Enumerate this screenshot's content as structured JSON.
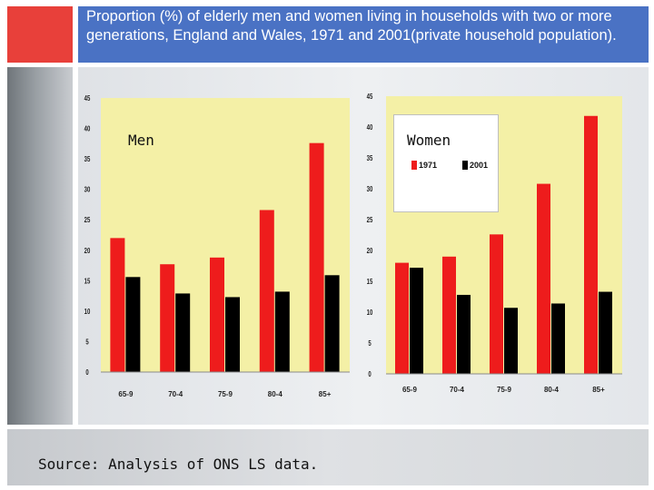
{
  "slide": {
    "title": "Proportion (%) of elderly men and women living in households with two or more generations, England and Wales, 1971 and 2001(private household population).",
    "source": "Source: Analysis of ONS LS data."
  },
  "colors": {
    "title_bar": "#4a72c4",
    "accent_block": "#e8403a",
    "plot_bg": "#f4f0a6",
    "series_1971": "#ee1c1c",
    "series_2001": "#000000"
  },
  "chart_data": [
    {
      "type": "bar",
      "panel_label": "Men",
      "categories": [
        "65-9",
        "70-4",
        "75-9",
        "80-4",
        "85+"
      ],
      "series": [
        {
          "name": "1971",
          "values": [
            22,
            17.7,
            18.8,
            26.6,
            37.6
          ]
        },
        {
          "name": "2001",
          "values": [
            15.6,
            12.9,
            12.3,
            13.2,
            15.9
          ]
        }
      ],
      "yticks": [
        "0",
        "5",
        "10",
        "15",
        "20",
        "25",
        "30",
        "35",
        "40",
        "45"
      ],
      "ylim": [
        0,
        45
      ],
      "legend": "none",
      "grid": false
    },
    {
      "type": "bar",
      "panel_label": "Women",
      "categories": [
        "65-9",
        "70-4",
        "75-9",
        "80-4",
        "85+"
      ],
      "series": [
        {
          "name": "1971",
          "values": [
            18,
            19,
            22.6,
            30.8,
            41.8
          ]
        },
        {
          "name": "2001",
          "values": [
            17.2,
            12.8,
            10.7,
            11.4,
            13.3
          ]
        }
      ],
      "yticks": [
        "0",
        "5",
        "10",
        "15",
        "20",
        "25",
        "30",
        "35",
        "40",
        "45"
      ],
      "ylim": [
        0,
        45
      ],
      "legend": "top-left",
      "grid": false
    }
  ]
}
